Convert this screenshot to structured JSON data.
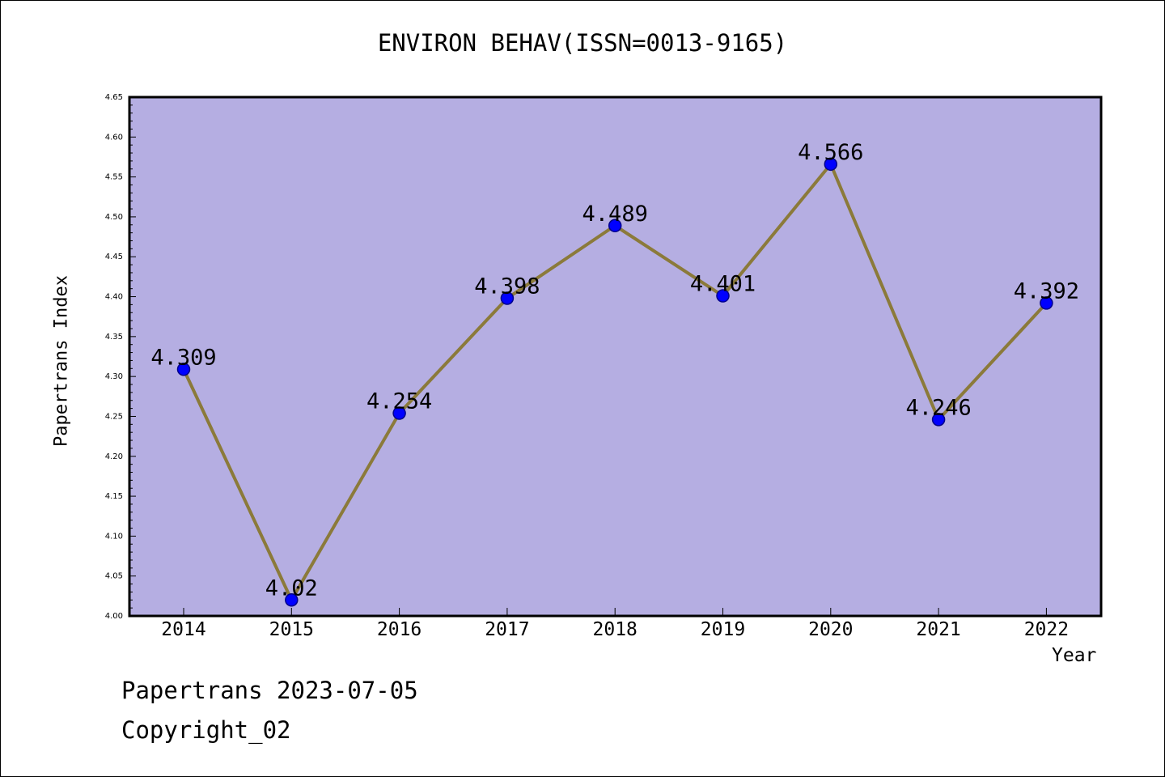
{
  "chart_data": {
    "type": "line",
    "title": "ENVIRON BEHAV(ISSN=0013-9165)",
    "xlabel": "Year",
    "ylabel": "Papertrans Index",
    "categories": [
      "2014",
      "2015",
      "2016",
      "2017",
      "2018",
      "2019",
      "2020",
      "2021",
      "2022"
    ],
    "values": [
      4.309,
      4.02,
      4.254,
      4.398,
      4.489,
      4.401,
      4.566,
      4.246,
      4.392
    ],
    "data_labels": [
      "4.309",
      "4.02",
      "4.254",
      "4.398",
      "4.489",
      "4.401",
      "4.566",
      "4.246",
      "4.392"
    ],
    "ylim": [
      4.0,
      4.65
    ],
    "yticks": [
      "4.00",
      "4.05",
      "4.10",
      "4.15",
      "4.20",
      "4.25",
      "4.30",
      "4.35",
      "4.40",
      "4.45",
      "4.50",
      "4.55",
      "4.60",
      "4.65"
    ],
    "grid": false,
    "legend": "none",
    "colors": {
      "plot_bg": "#b5aee2",
      "line": "#8b7a3a",
      "marker": "#0000ff",
      "marker_edge": "#00008b"
    }
  },
  "footer": {
    "line1": "Papertrans 2023-07-05",
    "line2": "Copyright_02"
  }
}
